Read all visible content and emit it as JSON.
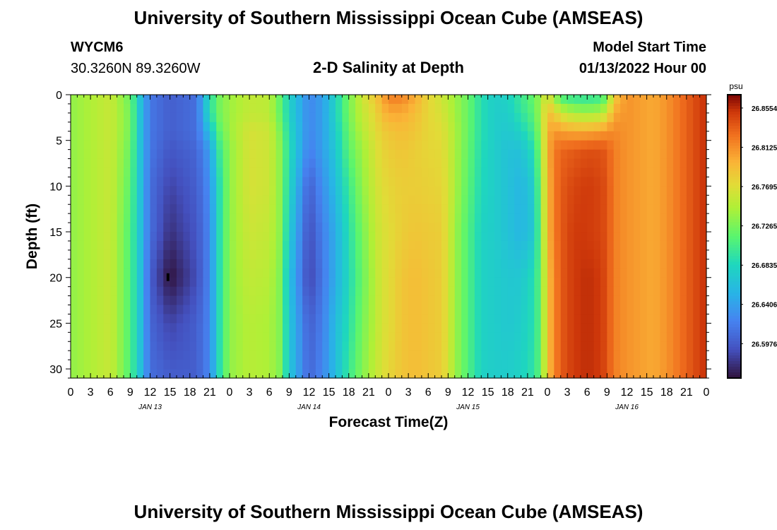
{
  "header": {
    "title": "University of Southern Mississippi Ocean Cube (AMSEAS)",
    "station_id": "WYCM6",
    "station_coords": "30.3260N  89.3260W",
    "plot_title": "2-D Salinity at Depth",
    "model_start_label": "Model Start Time",
    "model_start_value": "01/13/2022 Hour 00"
  },
  "footer": {
    "title": "University of Southern Mississippi Ocean Cube (AMSEAS)"
  },
  "chart_data": {
    "type": "heatmap",
    "xlabel": "Forecast Time(Z)",
    "ylabel": "Depth (ft)",
    "x_tick_labels": [
      "0",
      "3",
      "6",
      "9",
      "12",
      "15",
      "18",
      "21",
      "0",
      "3",
      "6",
      "9",
      "12",
      "15",
      "18",
      "21",
      "0",
      "3",
      "6",
      "9",
      "12",
      "15",
      "18",
      "21",
      "0",
      "3",
      "6",
      "9",
      "12",
      "15",
      "18",
      "21",
      "0"
    ],
    "x_day_labels": [
      {
        "hour": 12,
        "label": "JAN 13"
      },
      {
        "hour": 36,
        "label": "JAN 14"
      },
      {
        "hour": 60,
        "label": "JAN 15"
      },
      {
        "hour": 84,
        "label": "JAN 16"
      }
    ],
    "xlim": [
      0,
      96
    ],
    "y_ticks": [
      0,
      5,
      10,
      15,
      20,
      25,
      30
    ],
    "ylim": [
      0,
      31
    ],
    "y_inverted": true,
    "colorbar": {
      "unit": "psu",
      "tick_labels": [
        "26.8554",
        "26.8125",
        "26.7695",
        "26.7265",
        "26.6835",
        "26.6406",
        "26.5976"
      ],
      "tick_values": [
        26.8554,
        26.8125,
        26.7695,
        26.7265,
        26.6835,
        26.6406,
        26.5976
      ],
      "vmin": 26.56,
      "vmax": 26.87
    },
    "profiles": {
      "depths_ft": [
        0,
        2,
        4,
        6,
        10,
        15,
        20,
        25,
        31
      ],
      "hours": [
        0,
        6,
        9,
        10.5,
        12,
        15,
        19,
        21,
        22.5,
        24,
        27,
        30,
        31.5,
        33,
        36,
        38,
        40,
        42,
        44,
        46,
        47,
        48,
        50,
        52,
        54,
        56,
        57,
        58,
        60,
        62,
        64,
        66,
        68,
        70,
        71,
        72,
        73,
        74,
        76,
        78,
        80,
        81,
        82,
        84,
        86,
        88,
        90,
        92,
        94,
        96
      ],
      "salinity_psu": [
        [
          26.735,
          26.735,
          26.735,
          26.735,
          26.735,
          26.735,
          26.735,
          26.735,
          26.735
        ],
        [
          26.758,
          26.758,
          26.758,
          26.758,
          26.758,
          26.758,
          26.758,
          26.758,
          26.758
        ],
        [
          26.72,
          26.725,
          26.725,
          26.72,
          26.715,
          26.71,
          26.71,
          26.71,
          26.71
        ],
        [
          26.665,
          26.665,
          26.665,
          26.665,
          26.665,
          26.665,
          26.665,
          26.665,
          26.665
        ],
        [
          26.615,
          26.615,
          26.615,
          26.615,
          26.61,
          26.61,
          26.6,
          26.605,
          26.61
        ],
        [
          26.6,
          26.6,
          26.6,
          26.595,
          26.585,
          26.575,
          26.56,
          26.585,
          26.6
        ],
        [
          26.61,
          26.61,
          26.61,
          26.605,
          26.6,
          26.595,
          26.59,
          26.6,
          26.6
        ],
        [
          26.69,
          26.69,
          26.665,
          26.64,
          26.63,
          26.625,
          26.625,
          26.625,
          26.625
        ],
        [
          26.725,
          26.725,
          26.715,
          26.7,
          26.69,
          26.69,
          26.69,
          26.69,
          26.69
        ],
        [
          26.74,
          26.74,
          26.74,
          26.735,
          26.735,
          26.735,
          26.735,
          26.735,
          26.735
        ],
        [
          26.755,
          26.755,
          26.765,
          26.765,
          26.765,
          26.76,
          26.755,
          26.75,
          26.75
        ],
        [
          26.752,
          26.752,
          26.76,
          26.76,
          26.76,
          26.755,
          26.75,
          26.745,
          26.745
        ],
        [
          26.72,
          26.72,
          26.73,
          26.735,
          26.735,
          26.735,
          26.73,
          26.73,
          26.73
        ],
        [
          26.68,
          26.68,
          26.685,
          26.69,
          26.685,
          26.675,
          26.665,
          26.67,
          26.67
        ],
        [
          26.625,
          26.625,
          26.625,
          26.62,
          26.6,
          26.59,
          26.585,
          26.6,
          26.605
        ],
        [
          26.64,
          26.64,
          26.64,
          26.64,
          26.63,
          26.62,
          26.615,
          26.62,
          26.625
        ],
        [
          26.68,
          26.68,
          26.675,
          26.67,
          26.66,
          26.65,
          26.65,
          26.66,
          26.66
        ],
        [
          26.725,
          26.725,
          26.72,
          26.715,
          26.7,
          26.69,
          26.685,
          26.69,
          26.7
        ],
        [
          26.76,
          26.755,
          26.75,
          26.74,
          26.735,
          26.725,
          26.72,
          26.725,
          26.73
        ],
        [
          26.785,
          26.775,
          26.77,
          26.765,
          26.76,
          26.755,
          26.75,
          26.75,
          26.755
        ],
        [
          26.8,
          26.79,
          26.78,
          26.775,
          26.77,
          26.765,
          26.765,
          26.765,
          26.765
        ],
        [
          26.82,
          26.8,
          26.785,
          26.78,
          26.775,
          26.77,
          26.77,
          26.77,
          26.775
        ],
        [
          26.82,
          26.8,
          26.79,
          26.785,
          26.78,
          26.78,
          26.785,
          26.785,
          26.785
        ],
        [
          26.8,
          26.79,
          26.785,
          26.78,
          26.78,
          26.785,
          26.79,
          26.79,
          26.79
        ],
        [
          26.775,
          26.775,
          26.775,
          26.775,
          26.778,
          26.782,
          26.785,
          26.785,
          26.785
        ],
        [
          26.76,
          26.765,
          26.77,
          26.772,
          26.775,
          26.78,
          26.78,
          26.78,
          26.78
        ],
        [
          26.75,
          26.755,
          26.76,
          26.762,
          26.765,
          26.765,
          26.765,
          26.765,
          26.765
        ],
        [
          26.74,
          26.742,
          26.745,
          26.745,
          26.745,
          26.74,
          26.74,
          26.74,
          26.74
        ],
        [
          26.72,
          26.72,
          26.72,
          26.718,
          26.715,
          26.71,
          26.71,
          26.71,
          26.71
        ],
        [
          26.69,
          26.69,
          26.69,
          26.688,
          26.685,
          26.68,
          26.68,
          26.68,
          26.68
        ],
        [
          26.675,
          26.675,
          26.675,
          26.675,
          26.675,
          26.675,
          26.675,
          26.675,
          26.675
        ],
        [
          26.68,
          26.675,
          26.67,
          26.665,
          26.665,
          26.665,
          26.67,
          26.67,
          26.675
        ],
        [
          26.7,
          26.695,
          26.68,
          26.665,
          26.655,
          26.655,
          26.67,
          26.675,
          26.68
        ],
        [
          26.72,
          26.715,
          26.705,
          26.69,
          26.675,
          26.67,
          26.69,
          26.69,
          26.695
        ],
        [
          26.74,
          26.745,
          26.74,
          26.735,
          26.73,
          26.725,
          26.72,
          26.72,
          26.72
        ],
        [
          26.77,
          26.79,
          26.795,
          26.795,
          26.79,
          26.79,
          26.785,
          26.785,
          26.785
        ],
        [
          26.735,
          26.78,
          26.81,
          26.82,
          26.82,
          26.82,
          26.815,
          26.815,
          26.815
        ],
        [
          26.7,
          26.76,
          26.805,
          26.83,
          26.835,
          26.835,
          26.835,
          26.835,
          26.835
        ],
        [
          26.69,
          26.745,
          26.8,
          26.835,
          26.845,
          26.85,
          26.85,
          26.85,
          26.85
        ],
        [
          26.69,
          26.74,
          26.8,
          26.84,
          26.85,
          26.85,
          26.855,
          26.855,
          26.855
        ],
        [
          26.695,
          26.745,
          26.805,
          26.84,
          26.845,
          26.845,
          26.85,
          26.85,
          26.85
        ],
        [
          26.72,
          26.76,
          26.81,
          26.835,
          26.84,
          26.84,
          26.84,
          26.84,
          26.84
        ],
        [
          26.78,
          26.8,
          26.815,
          26.82,
          26.82,
          26.82,
          26.82,
          26.82,
          26.82
        ],
        [
          26.81,
          26.81,
          26.81,
          26.81,
          26.81,
          26.81,
          26.81,
          26.81,
          26.81
        ],
        [
          26.805,
          26.805,
          26.805,
          26.805,
          26.805,
          26.805,
          26.805,
          26.805,
          26.805
        ],
        [
          26.8,
          26.8,
          26.8,
          26.8,
          26.8,
          26.8,
          26.8,
          26.8,
          26.8
        ],
        [
          26.81,
          26.81,
          26.81,
          26.81,
          26.81,
          26.81,
          26.81,
          26.81,
          26.81
        ],
        [
          26.825,
          26.825,
          26.825,
          26.825,
          26.825,
          26.825,
          26.825,
          26.825,
          26.825
        ],
        [
          26.84,
          26.84,
          26.84,
          26.84,
          26.84,
          26.84,
          26.84,
          26.84,
          26.84
        ],
        [
          26.855,
          26.855,
          26.855,
          26.855,
          26.855,
          26.855,
          26.855,
          26.855,
          26.855
        ]
      ]
    },
    "marker": {
      "hour": 14.7,
      "depth_ft": 20
    }
  }
}
